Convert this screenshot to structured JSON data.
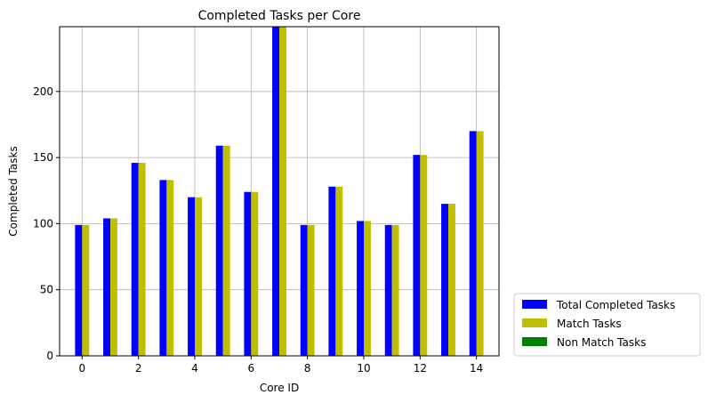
{
  "chart_data": {
    "type": "bar",
    "title": "Completed Tasks per Core",
    "xlabel": "Core ID",
    "ylabel": "Completed Tasks",
    "categories": [
      0,
      1,
      2,
      3,
      4,
      5,
      6,
      7,
      8,
      9,
      10,
      11,
      12,
      13,
      14
    ],
    "x_ticks": [
      0,
      2,
      4,
      6,
      8,
      10,
      12,
      14
    ],
    "y_ticks": [
      0,
      50,
      100,
      150,
      200
    ],
    "xlim": [
      -0.8,
      14.8
    ],
    "ylim": [
      0,
      249
    ],
    "grid": true,
    "legend_position": "outside-bottom-right",
    "series": [
      {
        "name": "Total Completed Tasks",
        "color": "#0000ff",
        "values": [
          99,
          104,
          146,
          133,
          120,
          159,
          124,
          249,
          99,
          128,
          102,
          99,
          152,
          115,
          170
        ]
      },
      {
        "name": "Match Tasks",
        "color": "#bfbf00",
        "values": [
          99,
          104,
          146,
          133,
          120,
          159,
          124,
          249,
          99,
          128,
          102,
          99,
          152,
          115,
          170
        ]
      },
      {
        "name": "Non Match Tasks",
        "color": "#008000",
        "values": [
          0,
          0,
          0,
          0,
          0,
          0,
          0,
          0,
          0,
          0,
          0,
          0,
          0,
          0,
          0
        ]
      }
    ]
  }
}
